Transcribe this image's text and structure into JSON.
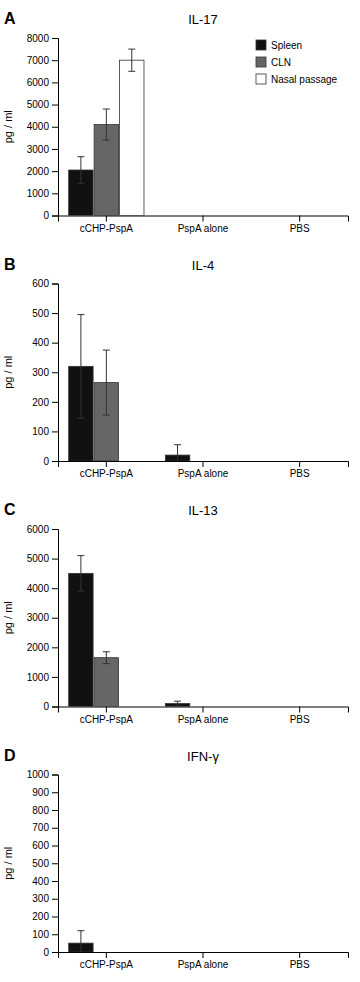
{
  "chart_data": [
    {
      "type": "bar",
      "label": "A",
      "title": "IL-17",
      "ylabel": "pg / ml",
      "categories": [
        "cCHP-PspA",
        "PspA alone",
        "PBS"
      ],
      "series": [
        {
          "name": "Spleen",
          "color": "#111111",
          "values": [
            2050,
            0,
            0
          ],
          "errors": [
            600,
            0,
            0
          ]
        },
        {
          "name": "CLN",
          "color": "#666666",
          "values": [
            4100,
            0,
            0
          ],
          "errors": [
            700,
            0,
            0
          ]
        },
        {
          "name": "Nasal passage",
          "color": "#ffffff",
          "values": [
            7000,
            0,
            0
          ],
          "errors": [
            500,
            0,
            0
          ]
        }
      ],
      "ylim": [
        0,
        8000
      ],
      "yticks": [
        0,
        1000,
        2000,
        3000,
        4000,
        5000,
        6000,
        7000,
        8000
      ],
      "grid": false,
      "legend": "upper right"
    },
    {
      "type": "bar",
      "label": "B",
      "title": "IL-4",
      "ylabel": "pg / ml",
      "categories": [
        "cCHP-PspA",
        "PspA alone",
        "PBS"
      ],
      "series": [
        {
          "name": "Spleen",
          "color": "#111111",
          "values": [
            320,
            20,
            0
          ],
          "errors": [
            175,
            35,
            0
          ]
        },
        {
          "name": "CLN",
          "color": "#666666",
          "values": [
            265,
            0,
            0
          ],
          "errors": [
            110,
            0,
            0
          ]
        },
        {
          "name": "Nasal passage",
          "color": "#ffffff",
          "values": [
            0,
            0,
            0
          ],
          "errors": [
            0,
            0,
            0
          ]
        }
      ],
      "ylim": [
        0,
        600
      ],
      "yticks": [
        0,
        100,
        200,
        300,
        400,
        500,
        600
      ],
      "grid": false
    },
    {
      "type": "bar",
      "label": "C",
      "title": "IL-13",
      "ylabel": "pg / ml",
      "categories": [
        "cCHP-PspA",
        "PspA alone",
        "PBS"
      ],
      "series": [
        {
          "name": "Spleen",
          "color": "#111111",
          "values": [
            4500,
            100,
            0
          ],
          "errors": [
            600,
            80,
            0
          ]
        },
        {
          "name": "CLN",
          "color": "#666666",
          "values": [
            1650,
            0,
            0
          ],
          "errors": [
            200,
            0,
            0
          ]
        },
        {
          "name": "Nasal passage",
          "color": "#ffffff",
          "values": [
            0,
            0,
            0
          ],
          "errors": [
            0,
            0,
            0
          ]
        }
      ],
      "ylim": [
        0,
        6000
      ],
      "yticks": [
        0,
        1000,
        2000,
        3000,
        4000,
        5000,
        6000
      ],
      "grid": false
    },
    {
      "type": "bar",
      "label": "D",
      "title": "IFN-γ",
      "ylabel": "pg / ml",
      "categories": [
        "cCHP-PspA",
        "PspA alone",
        "PBS"
      ],
      "series": [
        {
          "name": "Spleen",
          "color": "#111111",
          "values": [
            50,
            0,
            0
          ],
          "errors": [
            70,
            0,
            0
          ]
        },
        {
          "name": "CLN",
          "color": "#666666",
          "values": [
            0,
            0,
            0
          ],
          "errors": [
            0,
            0,
            0
          ]
        },
        {
          "name": "Nasal passage",
          "color": "#ffffff",
          "values": [
            0,
            0,
            0
          ],
          "errors": [
            0,
            0,
            0
          ]
        }
      ],
      "ylim": [
        0,
        1000
      ],
      "yticks": [
        0,
        100,
        200,
        300,
        400,
        500,
        600,
        700,
        800,
        900,
        1000
      ],
      "grid": false
    }
  ]
}
